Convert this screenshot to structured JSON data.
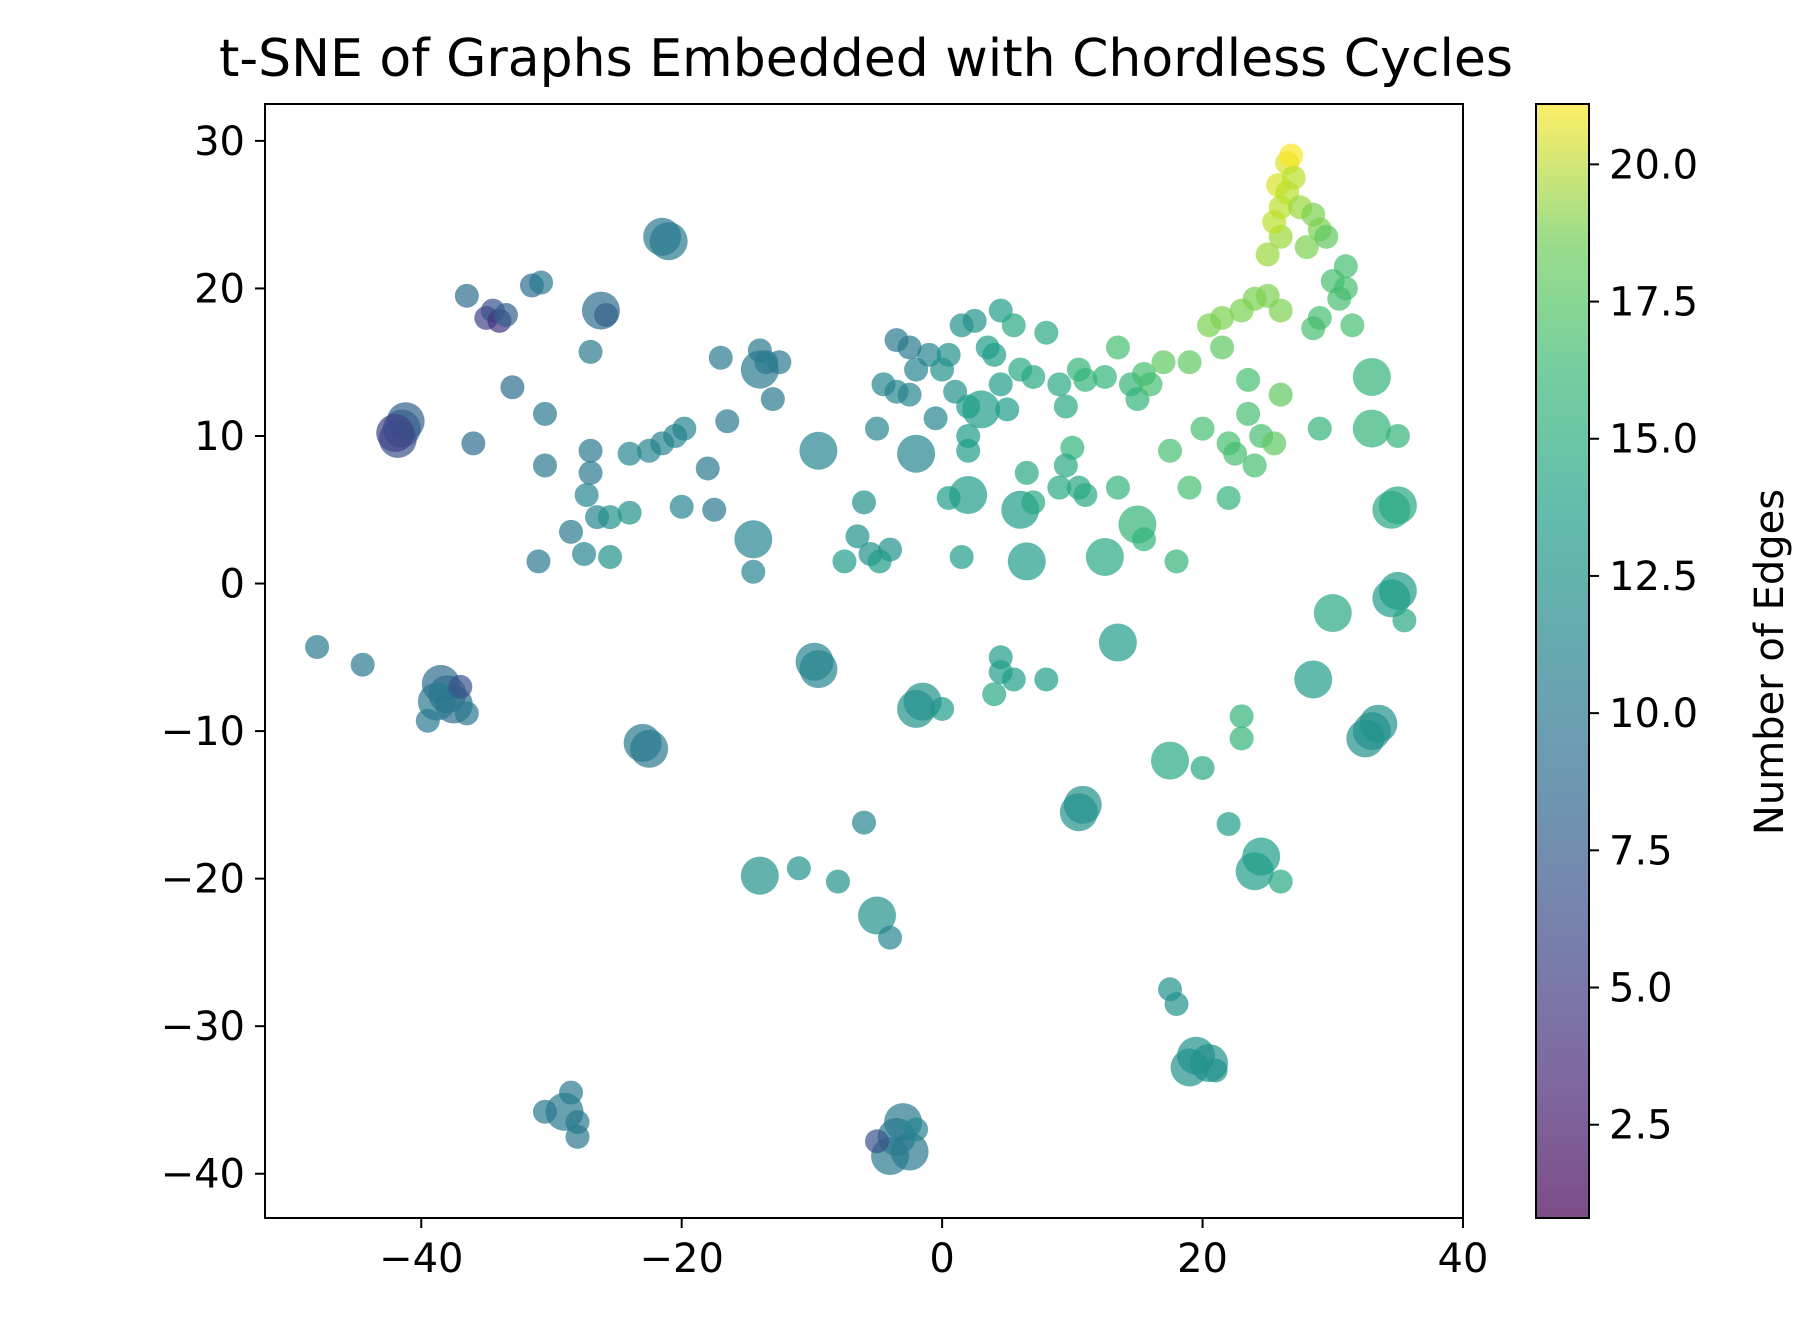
{
  "chart_data": {
    "type": "scatter",
    "title": "t-SNE of Graphs Embedded with Chordless Cycles",
    "xlabel": "",
    "ylabel": "",
    "xlim": [
      -52,
      40
    ],
    "ylim": [
      -43,
      32.5
    ],
    "x_ticks": [
      -40,
      -20,
      0,
      20,
      40
    ],
    "x_tick_labels": [
      "−40",
      "−20",
      "0",
      "20",
      "40"
    ],
    "y_ticks": [
      -40,
      -30,
      -20,
      -10,
      0,
      10,
      20,
      30
    ],
    "y_tick_labels": [
      "−40",
      "−30",
      "−20",
      "−10",
      "0",
      "10",
      "20",
      "30"
    ],
    "grid": false,
    "colorbar": {
      "label": "Number of Edges",
      "colormap": "viridis",
      "alpha": 0.7,
      "range": [
        0.8,
        21.1
      ],
      "ticks": [
        2.5,
        5.0,
        7.5,
        10.0,
        12.5,
        15.0,
        17.5,
        20.0
      ],
      "tick_labels": [
        "2.5",
        "5.0",
        "7.5",
        "10.0",
        "12.5",
        "15.0",
        "17.5",
        "20.0"
      ]
    },
    "marker_size_encoding": "larger markers for denser overlapping clusters",
    "points": [
      [
        -41.5,
        10.5,
        7,
        2
      ],
      [
        -41.8,
        9.8,
        6,
        2
      ],
      [
        -41.2,
        11.0,
        7,
        2
      ],
      [
        -42.0,
        10.2,
        5,
        2
      ],
      [
        -38.0,
        -7.5,
        8,
        2
      ],
      [
        -38.5,
        -6.8,
        8,
        2
      ],
      [
        -37.5,
        -8.2,
        8,
        2
      ],
      [
        -38.8,
        -8.0,
        9,
        2
      ],
      [
        -37.0,
        -7.0,
        6,
        1
      ],
      [
        -39.5,
        -9.3,
        9,
        1
      ],
      [
        -36.5,
        -8.8,
        9,
        1
      ],
      [
        -36.5,
        19.5,
        8,
        1
      ],
      [
        -35.0,
        18.0,
        5,
        1
      ],
      [
        -34.5,
        18.5,
        6,
        1
      ],
      [
        -34.0,
        17.8,
        4,
        1
      ],
      [
        -33.5,
        18.2,
        7,
        1
      ],
      [
        -36.0,
        9.5,
        8,
        1
      ],
      [
        -33.0,
        13.3,
        8,
        1
      ],
      [
        -31.5,
        20.2,
        8,
        1
      ],
      [
        -30.8,
        20.4,
        9,
        1
      ],
      [
        -30.5,
        11.5,
        9,
        1
      ],
      [
        -30.5,
        8.0,
        9,
        1
      ],
      [
        -31.0,
        1.5,
        9,
        1
      ],
      [
        -48.0,
        -4.3,
        9,
        1
      ],
      [
        -44.5,
        -5.5,
        9,
        1
      ],
      [
        -27.0,
        9.0,
        9,
        1
      ],
      [
        -27.0,
        7.5,
        9,
        1
      ],
      [
        -27.3,
        6.0,
        10,
        1
      ],
      [
        -28.5,
        3.5,
        9,
        1
      ],
      [
        -27.5,
        2.0,
        10,
        1
      ],
      [
        -26.5,
        4.5,
        10,
        1
      ],
      [
        -25.5,
        4.5,
        11,
        1
      ],
      [
        -25.5,
        1.8,
        11,
        1
      ],
      [
        -24.0,
        4.8,
        11,
        1
      ],
      [
        -24.0,
        8.8,
        10,
        1
      ],
      [
        -27.0,
        15.7,
        9,
        1
      ],
      [
        -26.2,
        18.5,
        8,
        2
      ],
      [
        -25.8,
        18.2,
        7,
        1
      ],
      [
        -21.5,
        23.5,
        9,
        2
      ],
      [
        -21.0,
        23.2,
        9,
        2
      ],
      [
        -22.5,
        9.0,
        10,
        1
      ],
      [
        -21.5,
        9.5,
        10,
        1
      ],
      [
        -20.5,
        10.0,
        10,
        1
      ],
      [
        -19.8,
        10.5,
        10,
        1
      ],
      [
        -20.0,
        5.2,
        10,
        1
      ],
      [
        -18.0,
        7.8,
        9,
        1
      ],
      [
        -17.5,
        5.0,
        9,
        1
      ],
      [
        -17.0,
        15.3,
        9,
        1
      ],
      [
        -16.5,
        11.0,
        9,
        1
      ],
      [
        -14.0,
        15.8,
        9,
        1
      ],
      [
        -14.0,
        14.5,
        9,
        2
      ],
      [
        -13.5,
        15.0,
        9,
        1
      ],
      [
        -12.5,
        15.0,
        9,
        1
      ],
      [
        -13.0,
        12.5,
        9,
        1
      ],
      [
        -14.5,
        3.0,
        10,
        2
      ],
      [
        -14.5,
        0.8,
        10,
        1
      ],
      [
        -23.0,
        -10.8,
        9,
        2
      ],
      [
        -22.5,
        -11.2,
        9,
        2
      ],
      [
        -9.8,
        -5.3,
        10,
        2
      ],
      [
        -9.5,
        -5.8,
        10,
        2
      ],
      [
        -14.0,
        -19.8,
        11,
        2
      ],
      [
        -11.0,
        -19.3,
        11,
        1
      ],
      [
        -8.0,
        -20.2,
        11,
        1
      ],
      [
        -6.0,
        -16.2,
        10,
        1
      ],
      [
        -5.0,
        -22.5,
        11,
        2
      ],
      [
        -4.0,
        -24.0,
        10,
        1
      ],
      [
        -3.5,
        -37.5,
        9,
        2
      ],
      [
        -3.0,
        -36.5,
        9,
        2
      ],
      [
        -2.5,
        -38.5,
        9,
        2
      ],
      [
        -4.0,
        -38.8,
        9,
        2
      ],
      [
        -2.0,
        -37.0,
        10,
        1
      ],
      [
        -5.0,
        -37.8,
        6,
        1
      ],
      [
        -28.5,
        -34.5,
        9,
        1
      ],
      [
        -29.0,
        -35.8,
        9,
        2
      ],
      [
        -28.0,
        -36.5,
        9,
        1
      ],
      [
        -30.5,
        -35.8,
        9,
        1
      ],
      [
        -28.0,
        -37.5,
        9,
        1
      ],
      [
        -9.5,
        9.0,
        10,
        2
      ],
      [
        -5.0,
        10.5,
        10,
        1
      ],
      [
        -6.0,
        5.5,
        11,
        1
      ],
      [
        -6.5,
        3.2,
        11,
        1
      ],
      [
        -7.5,
        1.5,
        12,
        1
      ],
      [
        -5.5,
        2.0,
        11,
        1
      ],
      [
        -4.0,
        2.3,
        11,
        1
      ],
      [
        -4.8,
        1.5,
        12,
        1
      ],
      [
        -4.5,
        13.5,
        10,
        1
      ],
      [
        -3.5,
        13.0,
        10,
        1
      ],
      [
        -3.5,
        16.5,
        9,
        1
      ],
      [
        -2.5,
        16.0,
        9,
        1
      ],
      [
        -2.0,
        14.5,
        10,
        1
      ],
      [
        -1.0,
        15.5,
        10,
        1
      ],
      [
        -2.5,
        12.8,
        10,
        1
      ],
      [
        -0.5,
        11.2,
        10,
        1
      ],
      [
        -2.0,
        8.8,
        10,
        2
      ],
      [
        0.0,
        14.5,
        11,
        1
      ],
      [
        0.5,
        15.5,
        11,
        1
      ],
      [
        1.0,
        13.0,
        11,
        1
      ],
      [
        1.5,
        17.5,
        11,
        1
      ],
      [
        2.5,
        17.8,
        11,
        1
      ],
      [
        2.0,
        12.0,
        12,
        1
      ],
      [
        3.0,
        11.8,
        12,
        2
      ],
      [
        3.5,
        16.0,
        12,
        1
      ],
      [
        4.5,
        18.5,
        12,
        1
      ],
      [
        5.5,
        17.5,
        13,
        1
      ],
      [
        4.0,
        15.5,
        12,
        1
      ],
      [
        4.5,
        13.5,
        12,
        1
      ],
      [
        6.0,
        14.5,
        13,
        1
      ],
      [
        7.0,
        14.0,
        13,
        1
      ],
      [
        8.0,
        17.0,
        13,
        1
      ],
      [
        5.0,
        11.8,
        12,
        1
      ],
      [
        2.0,
        9.0,
        12,
        1
      ],
      [
        2.0,
        10.0,
        12,
        1
      ],
      [
        0.5,
        5.8,
        12,
        1
      ],
      [
        2.0,
        6.0,
        12,
        2
      ],
      [
        1.5,
        1.8,
        12,
        1
      ],
      [
        6.0,
        5.0,
        12,
        2
      ],
      [
        6.5,
        7.5,
        13,
        1
      ],
      [
        7.0,
        5.5,
        13,
        1
      ],
      [
        6.5,
        1.5,
        12,
        2
      ],
      [
        8.0,
        -6.5,
        12,
        1
      ],
      [
        4.5,
        -5.0,
        12,
        1
      ],
      [
        4.5,
        -6.0,
        12,
        1
      ],
      [
        5.5,
        -6.5,
        12,
        1
      ],
      [
        4.0,
        -7.5,
        13,
        1
      ],
      [
        0.0,
        -8.5,
        12,
        1
      ],
      [
        -2.0,
        -8.5,
        11,
        2
      ],
      [
        -1.5,
        -8.0,
        11,
        2
      ],
      [
        9.0,
        13.5,
        13,
        1
      ],
      [
        9.5,
        12.0,
        13,
        1
      ],
      [
        10.5,
        14.5,
        14,
        1
      ],
      [
        11.0,
        13.8,
        14,
        1
      ],
      [
        10.0,
        9.2,
        14,
        1
      ],
      [
        9.5,
        8.0,
        13,
        1
      ],
      [
        10.5,
        6.5,
        13,
        1
      ],
      [
        11.0,
        6.0,
        13,
        1
      ],
      [
        9.0,
        6.5,
        13,
        1
      ],
      [
        12.5,
        14.0,
        14,
        1
      ],
      [
        13.5,
        16.0,
        15,
        1
      ],
      [
        14.5,
        13.5,
        14,
        1
      ],
      [
        15.0,
        12.5,
        14,
        1
      ],
      [
        16.0,
        13.5,
        15,
        1
      ],
      [
        15.5,
        14.2,
        15,
        1
      ],
      [
        17.0,
        15.0,
        16,
        1
      ],
      [
        19.0,
        15.0,
        16,
        1
      ],
      [
        12.5,
        1.8,
        13,
        2
      ],
      [
        13.5,
        6.5,
        14,
        1
      ],
      [
        15.0,
        4.0,
        14,
        2
      ],
      [
        15.5,
        3.0,
        14,
        1
      ],
      [
        18.0,
        1.5,
        14,
        1
      ],
      [
        17.5,
        9.0,
        15,
        1
      ],
      [
        19.0,
        6.5,
        15,
        1
      ],
      [
        13.5,
        -4.0,
        12,
        2
      ],
      [
        10.5,
        -15.5,
        11,
        2
      ],
      [
        10.8,
        -15.0,
        11,
        2
      ],
      [
        17.5,
        -12.0,
        13,
        2
      ],
      [
        20.0,
        -12.5,
        13,
        1
      ],
      [
        23.0,
        -9.0,
        14,
        1
      ],
      [
        23.0,
        -10.5,
        14,
        1
      ],
      [
        22.0,
        -16.3,
        12,
        1
      ],
      [
        24.5,
        -18.5,
        12,
        2
      ],
      [
        24.0,
        -19.5,
        12,
        2
      ],
      [
        26.0,
        -20.2,
        13,
        1
      ],
      [
        17.5,
        -27.5,
        11,
        1
      ],
      [
        18.0,
        -28.5,
        11,
        1
      ],
      [
        19.5,
        -32.0,
        11,
        2
      ],
      [
        20.5,
        -32.5,
        11,
        2
      ],
      [
        19.0,
        -32.8,
        11,
        2
      ],
      [
        21.0,
        -33.0,
        11,
        1
      ],
      [
        20.0,
        10.5,
        15,
        1
      ],
      [
        20.5,
        17.5,
        17,
        1
      ],
      [
        21.5,
        18.0,
        17,
        1
      ],
      [
        21.5,
        16.0,
        16,
        1
      ],
      [
        22.0,
        9.5,
        15,
        1
      ],
      [
        22.5,
        8.8,
        15,
        1
      ],
      [
        22.0,
        5.8,
        14,
        1
      ],
      [
        23.5,
        11.5,
        15,
        1
      ],
      [
        24.0,
        8.0,
        15,
        1
      ],
      [
        24.5,
        10.0,
        15,
        1
      ],
      [
        25.5,
        9.5,
        16,
        1
      ],
      [
        26.0,
        12.8,
        16,
        1
      ],
      [
        23.5,
        13.8,
        15,
        1
      ],
      [
        25.0,
        19.5,
        17,
        1
      ],
      [
        24.0,
        19.3,
        17,
        1
      ],
      [
        23.0,
        18.5,
        17,
        1
      ],
      [
        26.0,
        18.5,
        17,
        1
      ],
      [
        25.0,
        22.3,
        18,
        1
      ],
      [
        26.0,
        23.5,
        18,
        1
      ],
      [
        25.5,
        24.5,
        19,
        1
      ],
      [
        26.0,
        25.5,
        19,
        1
      ],
      [
        25.8,
        27.0,
        20,
        1
      ],
      [
        26.5,
        26.5,
        19,
        1
      ],
      [
        26.5,
        28.5,
        20,
        1
      ],
      [
        26.8,
        29.0,
        21,
        1
      ],
      [
        27.0,
        27.5,
        19,
        1
      ],
      [
        27.5,
        25.5,
        18,
        1
      ],
      [
        28.5,
        25.0,
        17,
        1
      ],
      [
        29.0,
        24.0,
        17,
        1
      ],
      [
        28.0,
        22.8,
        17,
        1
      ],
      [
        29.5,
        23.5,
        16,
        1
      ],
      [
        31.0,
        21.5,
        15,
        1
      ],
      [
        30.0,
        20.5,
        15,
        1
      ],
      [
        31.0,
        20.0,
        15,
        1
      ],
      [
        30.5,
        19.3,
        15,
        1
      ],
      [
        29.0,
        18.0,
        15,
        1
      ],
      [
        28.5,
        17.3,
        15,
        1
      ],
      [
        31.5,
        17.5,
        15,
        1
      ],
      [
        29.0,
        10.5,
        14,
        1
      ],
      [
        33.0,
        14.0,
        14,
        2
      ],
      [
        33.0,
        10.5,
        14,
        2
      ],
      [
        35.0,
        10.0,
        14,
        1
      ],
      [
        35.0,
        5.3,
        13,
        2
      ],
      [
        34.5,
        5.0,
        13,
        2
      ],
      [
        30.0,
        -2.0,
        13,
        2
      ],
      [
        34.5,
        -1.0,
        12,
        2
      ],
      [
        35.0,
        -0.5,
        12,
        2
      ],
      [
        35.5,
        -2.5,
        13,
        1
      ],
      [
        28.5,
        -6.5,
        12,
        2
      ],
      [
        33.0,
        -10.0,
        11,
        2
      ],
      [
        33.5,
        -9.5,
        11,
        2
      ],
      [
        32.5,
        -10.5,
        11,
        2
      ]
    ]
  }
}
